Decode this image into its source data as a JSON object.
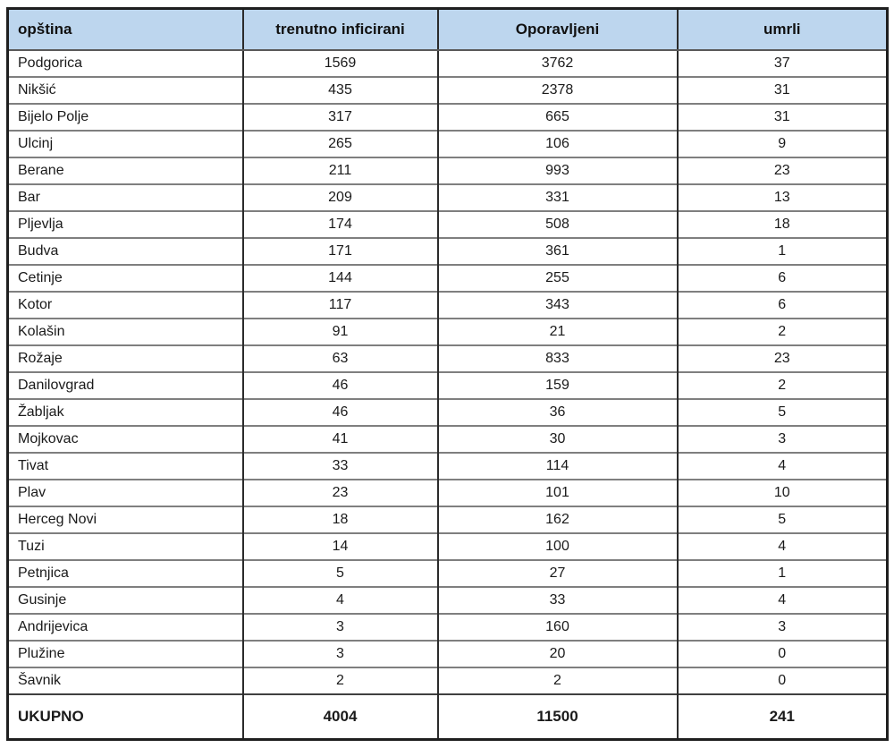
{
  "chart_data": {
    "type": "table",
    "columns": [
      "opština",
      "trenutno inficirani",
      "Oporavljeni",
      "umrli"
    ],
    "rows": [
      [
        "Podgorica",
        1569,
        3762,
        37
      ],
      [
        "Nikšić",
        435,
        2378,
        31
      ],
      [
        "Bijelo Polje",
        317,
        665,
        31
      ],
      [
        "Ulcinj",
        265,
        106,
        9
      ],
      [
        "Berane",
        211,
        993,
        23
      ],
      [
        "Bar",
        209,
        331,
        13
      ],
      [
        "Pljevlja",
        174,
        508,
        18
      ],
      [
        "Budva",
        171,
        361,
        1
      ],
      [
        "Cetinje",
        144,
        255,
        6
      ],
      [
        "Kotor",
        117,
        343,
        6
      ],
      [
        "Kolašin",
        91,
        21,
        2
      ],
      [
        "Rožaje",
        63,
        833,
        23
      ],
      [
        "Danilovgrad",
        46,
        159,
        2
      ],
      [
        "Žabljak",
        46,
        36,
        5
      ],
      [
        "Mojkovac",
        41,
        30,
        3
      ],
      [
        "Tivat",
        33,
        114,
        4
      ],
      [
        "Plav",
        23,
        101,
        10
      ],
      [
        "Herceg Novi",
        18,
        162,
        5
      ],
      [
        "Tuzi",
        14,
        100,
        4
      ],
      [
        "Petnjica",
        5,
        27,
        1
      ],
      [
        "Gusinje",
        4,
        33,
        4
      ],
      [
        "Andrijevica",
        3,
        160,
        3
      ],
      [
        "Plužine",
        3,
        20,
        0
      ],
      [
        "Šavnik",
        2,
        2,
        0
      ]
    ],
    "total": {
      "label": "UKUPNO",
      "values": [
        4004,
        11500,
        241
      ]
    },
    "layout": {
      "header_bg": "#bdd6ee",
      "row_bg": "#ffffff",
      "grid": "on"
    }
  }
}
